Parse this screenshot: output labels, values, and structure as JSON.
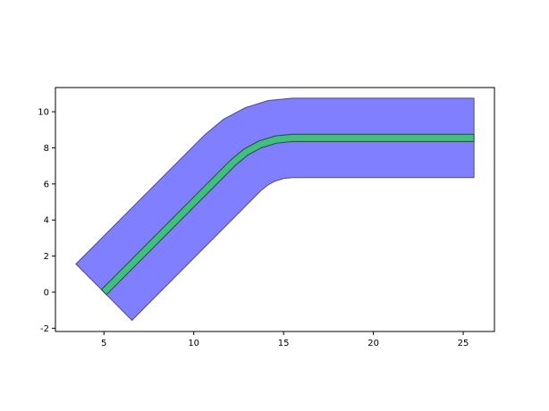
{
  "chart_data": {
    "type": "polygon",
    "xlim": [
      2.3,
      26.74
    ],
    "ylim": [
      -2.18,
      11.34
    ],
    "xticks": [
      5,
      10,
      15,
      20,
      25
    ],
    "yticks": [
      -2,
      0,
      2,
      4,
      6,
      8,
      10
    ],
    "grid": false,
    "series": [
      {
        "color": "#7f7fff",
        "edge_color": "#4d4d80",
        "x": [
          3.44,
          10.62,
          11.67,
          12.86,
          14.15,
          15.5,
          25.6,
          25.6,
          15.5,
          15.01,
          14.54,
          14.11,
          13.73,
          6.56
        ],
        "y": [
          1.56,
          8.73,
          9.59,
          10.22,
          10.62,
          10.75,
          10.75,
          6.35,
          6.35,
          6.3,
          6.16,
          5.93,
          5.62,
          -1.56
        ]
      },
      {
        "color": "#40bf80",
        "edge_color": "#264d3a",
        "x": [
          4.86,
          12.04,
          12.78,
          13.63,
          14.54,
          15.5,
          25.6,
          25.6,
          15.5,
          14.62,
          13.78,
          13.0,
          12.32,
          5.14
        ],
        "y": [
          0.14,
          7.31,
          7.92,
          8.38,
          8.66,
          8.75,
          8.75,
          8.35,
          8.35,
          8.26,
          8.01,
          7.59,
          7.03,
          -0.14
        ]
      }
    ]
  }
}
